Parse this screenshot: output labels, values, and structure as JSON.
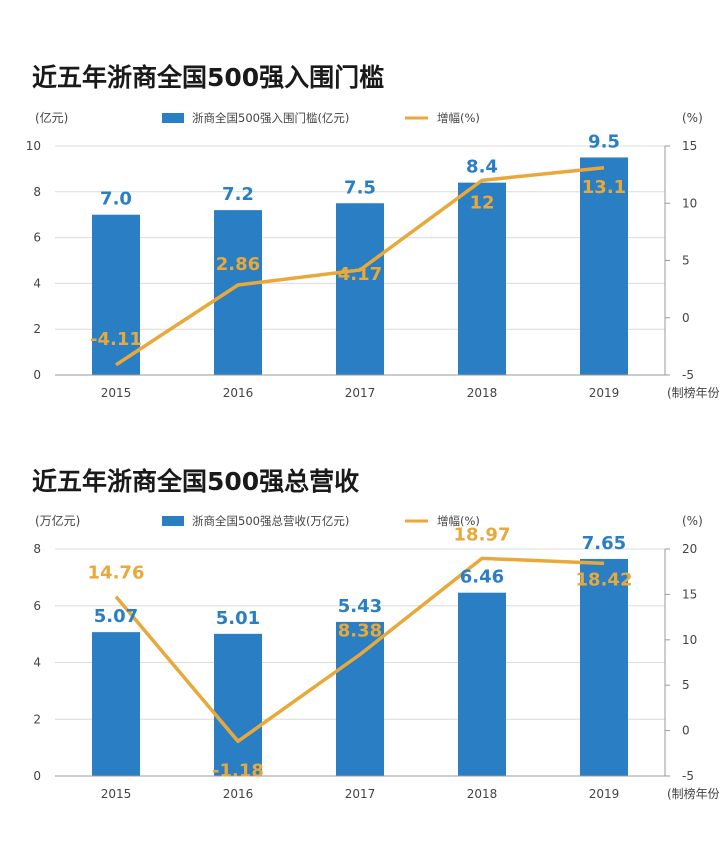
{
  "chart_data": [
    {
      "type": "bar",
      "title": "近五年浙商全国500强入围门槛",
      "categories": [
        "2015",
        "2016",
        "2017",
        "2018",
        "2019"
      ],
      "xunit": "(制榜年份)",
      "ylabel_left": "(亿元)",
      "ylabel_right": "(%)",
      "ylim_left": [
        0,
        10
      ],
      "yticks_left": [
        0,
        2,
        4,
        6,
        8,
        10
      ],
      "ylim_right": [
        -5,
        15
      ],
      "yticks_right": [
        -5,
        0,
        5,
        10,
        15
      ],
      "grid": true,
      "legend_position": "top",
      "series": [
        {
          "name": "浙商全国500强入围门槛(亿元)",
          "kind": "bar",
          "axis": "left",
          "values": [
            7.0,
            7.2,
            7.5,
            8.4,
            9.5
          ],
          "labels": [
            "7.0",
            "7.2",
            "7.5",
            "8.4",
            "9.5"
          ],
          "color": "#2a7fc4"
        },
        {
          "name": "增幅(%)",
          "kind": "line",
          "axis": "right",
          "values": [
            -4.11,
            2.86,
            4.17,
            12,
            13.1
          ],
          "labels": [
            "-4.11",
            "2.86",
            "4.17",
            "12",
            "13.1"
          ],
          "color": "#e8a93a"
        }
      ]
    },
    {
      "type": "bar",
      "title": "近五年浙商全国500强总营收",
      "categories": [
        "2015",
        "2016",
        "2017",
        "2018",
        "2019"
      ],
      "xunit": "(制榜年份)",
      "ylabel_left": "(万亿元)",
      "ylabel_right": "(%)",
      "ylim_left": [
        0,
        8
      ],
      "yticks_left": [
        0,
        2,
        4,
        6,
        8
      ],
      "ylim_right": [
        -5,
        20
      ],
      "yticks_right": [
        -5,
        0,
        5,
        10,
        15,
        20
      ],
      "grid": true,
      "legend_position": "top",
      "series": [
        {
          "name": "浙商全国500强总营收(万亿元)",
          "kind": "bar",
          "axis": "left",
          "values": [
            5.07,
            5.01,
            5.43,
            6.46,
            7.65
          ],
          "labels": [
            "5.07",
            "5.01",
            "5.43",
            "6.46",
            "7.65"
          ],
          "color": "#2a7fc4"
        },
        {
          "name": "增幅(%)",
          "kind": "line",
          "axis": "right",
          "values": [
            14.76,
            -1.18,
            8.38,
            18.97,
            18.42
          ],
          "labels": [
            "14.76",
            "-1.18",
            "8.38",
            "18.97",
            "18.42"
          ],
          "color": "#e8a93a"
        }
      ]
    }
  ]
}
